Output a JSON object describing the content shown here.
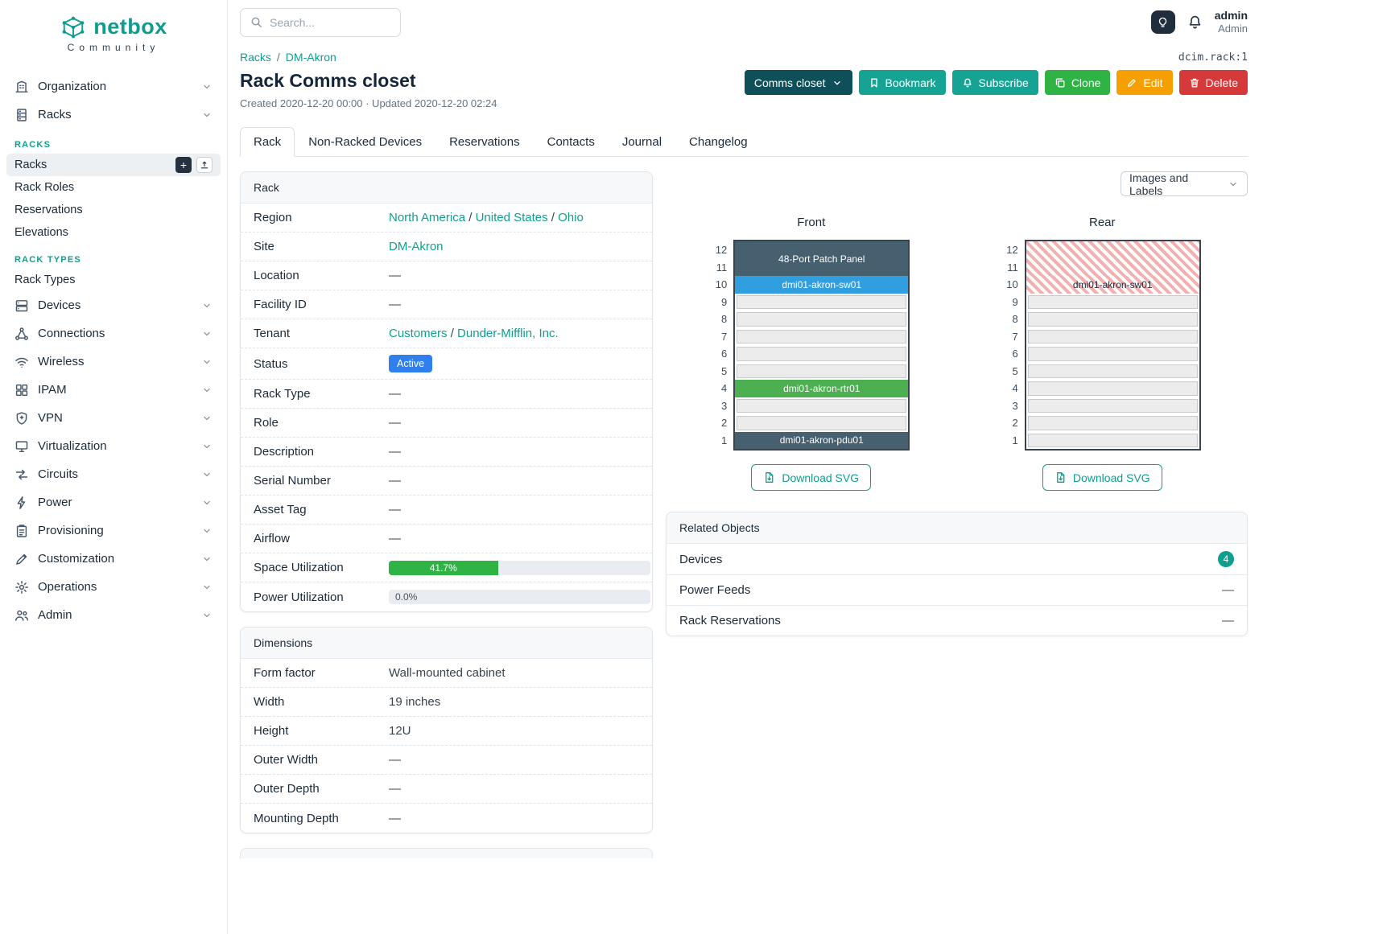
{
  "sidebar": {
    "brand": "netbox",
    "community": "Community",
    "organization": "Organization",
    "racks": "Racks",
    "racks_heading": "RACKS",
    "racks_items": [
      "Racks",
      "Rack Roles",
      "Reservations",
      "Elevations"
    ],
    "rack_types_heading": "RACK TYPES",
    "rack_types_item": "Rack Types",
    "menu": [
      "Devices",
      "Connections",
      "Wireless",
      "IPAM",
      "VPN",
      "Virtualization",
      "Circuits",
      "Power",
      "Provisioning",
      "Customization",
      "Operations",
      "Admin"
    ]
  },
  "topbar": {
    "search_placeholder": "Search...",
    "user": {
      "name": "admin",
      "role": "Admin"
    }
  },
  "header": {
    "breadcrumb": [
      "Racks",
      "DM-Akron"
    ],
    "breadcrumb_sep": "/",
    "object_id": "dcim.rack:1",
    "title": "Rack Comms closet",
    "meta": "Created 2020-12-20 00:00 · Updated 2020-12-20 02:24",
    "buttons": {
      "group": "Comms closet",
      "bookmark": "Bookmark",
      "subscribe": "Subscribe",
      "clone": "Clone",
      "edit": "Edit",
      "delete": "Delete"
    }
  },
  "tabs": {
    "items": [
      "Rack",
      "Non-Racked Devices",
      "Reservations",
      "Contacts",
      "Journal",
      "Changelog"
    ],
    "active": "Rack"
  },
  "rack_panel": {
    "title": "Rack",
    "sep": "/",
    "region_label": "Region",
    "region_links": [
      "North America",
      "United States",
      "Ohio"
    ],
    "site_label": "Site",
    "site_value": "DM-Akron",
    "location_label": "Location",
    "location_value": "—",
    "facility_label": "Facility ID",
    "facility_value": "—",
    "tenant_label": "Tenant",
    "tenant_links": [
      "Customers",
      "Dunder-Mifflin, Inc."
    ],
    "status_label": "Status",
    "status_value": "Active",
    "rack_type_label": "Rack Type",
    "rack_type_value": "—",
    "role_label": "Role",
    "role_value": "—",
    "description_label": "Description",
    "description_value": "—",
    "serial_label": "Serial Number",
    "serial_value": "—",
    "asset_label": "Asset Tag",
    "asset_value": "—",
    "airflow_label": "Airflow",
    "airflow_value": "—",
    "space_label": "Space Utilization",
    "space_value": "41.7%",
    "space_percent": 41.7,
    "power_label": "Power Utilization",
    "power_value": "0.0%",
    "power_percent": 0
  },
  "dimensions_panel": {
    "title": "Dimensions",
    "rows": [
      {
        "label": "Form factor",
        "value": "Wall-mounted cabinet"
      },
      {
        "label": "Width",
        "value": "19 inches"
      },
      {
        "label": "Height",
        "value": "12U"
      },
      {
        "label": "Outer Width",
        "value": "—"
      },
      {
        "label": "Outer Depth",
        "value": "—"
      },
      {
        "label": "Mounting Depth",
        "value": "—"
      }
    ]
  },
  "elevation": {
    "view_select": "Images and Labels",
    "download_label": "Download SVG",
    "unit_numbers": [
      12,
      11,
      10,
      9,
      8,
      7,
      6,
      5,
      4,
      3,
      2,
      1
    ],
    "colors": {
      "slate": "#466070",
      "blue": "#2f9fe0",
      "green": "#4caf50"
    },
    "front": {
      "title": "Front",
      "blocks": [
        {
          "kind": "device",
          "label": "48-Port Patch Panel",
          "units": 2,
          "color": "slate"
        },
        {
          "kind": "device",
          "label": "dmi01-akron-sw01",
          "units": 1,
          "color": "blue"
        },
        {
          "kind": "empty"
        },
        {
          "kind": "empty"
        },
        {
          "kind": "empty"
        },
        {
          "kind": "empty"
        },
        {
          "kind": "empty"
        },
        {
          "kind": "device",
          "label": "dmi01-akron-rtr01",
          "units": 1,
          "color": "green"
        },
        {
          "kind": "empty"
        },
        {
          "kind": "empty"
        },
        {
          "kind": "device",
          "label": "dmi01-akron-pdu01",
          "units": 1,
          "color": "slate"
        }
      ]
    },
    "rear": {
      "title": "Rear",
      "blocks": [
        {
          "kind": "occupied",
          "units": 2
        },
        {
          "kind": "occupied",
          "units": 1,
          "label": "dmi01-akron-sw01"
        },
        {
          "kind": "empty"
        },
        {
          "kind": "empty"
        },
        {
          "kind": "empty"
        },
        {
          "kind": "empty"
        },
        {
          "kind": "empty"
        },
        {
          "kind": "empty"
        },
        {
          "kind": "empty"
        },
        {
          "kind": "empty"
        },
        {
          "kind": "empty"
        }
      ]
    }
  },
  "related": {
    "title": "Related Objects",
    "rows": [
      {
        "label": "Devices",
        "badge": "4"
      },
      {
        "label": "Power Feeds",
        "value": "—"
      },
      {
        "label": "Rack Reservations",
        "value": "—"
      }
    ]
  }
}
